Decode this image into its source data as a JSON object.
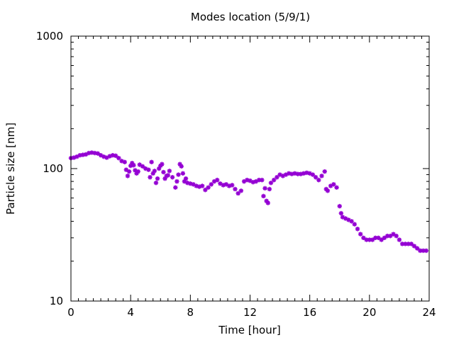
{
  "chart_data": {
    "type": "scatter",
    "title": "Modes location (5/9/1)",
    "xlabel": "Time [hour]",
    "ylabel": "Particle size [nm]",
    "xlim": [
      0,
      24
    ],
    "ylim": [
      10,
      1000
    ],
    "yscale": "log",
    "xticks": [
      0,
      4,
      8,
      12,
      16,
      20,
      24
    ],
    "xtick_labels": [
      "0",
      "4",
      "8",
      "12",
      "16",
      "20",
      "24"
    ],
    "yticks": [
      10,
      100,
      1000
    ],
    "ytick_labels": [
      "10",
      "100",
      "1000"
    ],
    "grid": false,
    "legend": "none",
    "marker": "star",
    "color": "#9400d3",
    "series": [
      {
        "x": [
          0.0,
          0.2,
          0.4,
          0.6,
          0.8,
          1.0,
          1.2,
          1.4,
          1.6,
          1.8,
          2.0,
          2.2,
          2.4,
          2.6,
          2.8,
          3.0,
          3.2,
          3.4,
          3.6,
          3.7,
          3.8,
          3.9,
          4.0,
          4.1,
          4.2,
          4.3,
          4.4,
          4.5,
          4.6,
          4.8,
          5.0,
          5.2,
          5.3,
          5.4,
          5.5,
          5.6,
          5.7,
          5.8,
          5.9,
          6.0,
          6.1,
          6.2,
          6.3,
          6.4,
          6.5,
          6.6,
          6.8,
          7.0,
          7.1,
          7.2,
          7.3,
          7.4,
          7.5,
          7.6,
          7.7,
          7.8,
          8.0,
          8.2,
          8.4,
          8.6,
          8.8,
          9.0,
          9.2,
          9.4,
          9.6,
          9.8,
          10.0,
          10.2,
          10.4,
          10.6,
          10.8,
          11.0,
          11.2,
          11.4,
          11.6,
          11.8,
          12.0,
          12.2,
          12.4,
          12.6,
          12.8,
          12.9,
          13.0,
          13.1,
          13.2,
          13.3,
          13.4,
          13.6,
          13.8,
          14.0,
          14.2,
          14.4,
          14.6,
          14.8,
          15.0,
          15.2,
          15.4,
          15.6,
          15.8,
          16.0,
          16.2,
          16.4,
          16.6,
          16.8,
          17.0,
          17.1,
          17.2,
          17.4,
          17.6,
          17.8,
          18.0,
          18.1,
          18.2,
          18.4,
          18.6,
          18.8,
          19.0,
          19.2,
          19.4,
          19.6,
          19.8,
          20.0,
          20.2,
          20.4,
          20.6,
          20.8,
          21.0,
          21.2,
          21.4,
          21.6,
          21.8,
          22.0,
          22.2,
          22.4,
          22.6,
          22.8,
          23.0,
          23.2,
          23.4,
          23.6,
          23.8
        ],
        "y": [
          120,
          121,
          123,
          126,
          127,
          128,
          131,
          132,
          131,
          130,
          126,
          123,
          121,
          124,
          126,
          125,
          120,
          114,
          112,
          98,
          88,
          95,
          105,
          110,
          106,
          97,
          92,
          95,
          107,
          104,
          100,
          98,
          86,
          112,
          92,
          96,
          78,
          84,
          100,
          105,
          108,
          94,
          84,
          88,
          89,
          96,
          86,
          72,
          80,
          90,
          108,
          104,
          92,
          80,
          84,
          78,
          77,
          76,
          74,
          73,
          74,
          69,
          72,
          76,
          80,
          82,
          77,
          75,
          76,
          74,
          75,
          70,
          65,
          68,
          80,
          82,
          81,
          79,
          80,
          82,
          82,
          62,
          71,
          57,
          55,
          70,
          78,
          82,
          86,
          90,
          88,
          90,
          92,
          91,
          92,
          91,
          91,
          92,
          93,
          92,
          90,
          86,
          82,
          88,
          95,
          70,
          68,
          74,
          76,
          72,
          52,
          46,
          43,
          42,
          41,
          40,
          38,
          35,
          32,
          30,
          29,
          29,
          29,
          30,
          30,
          29,
          30,
          31,
          31,
          32,
          31,
          29,
          27,
          27,
          27,
          27,
          26,
          25,
          24,
          24,
          24
        ]
      }
    ]
  }
}
